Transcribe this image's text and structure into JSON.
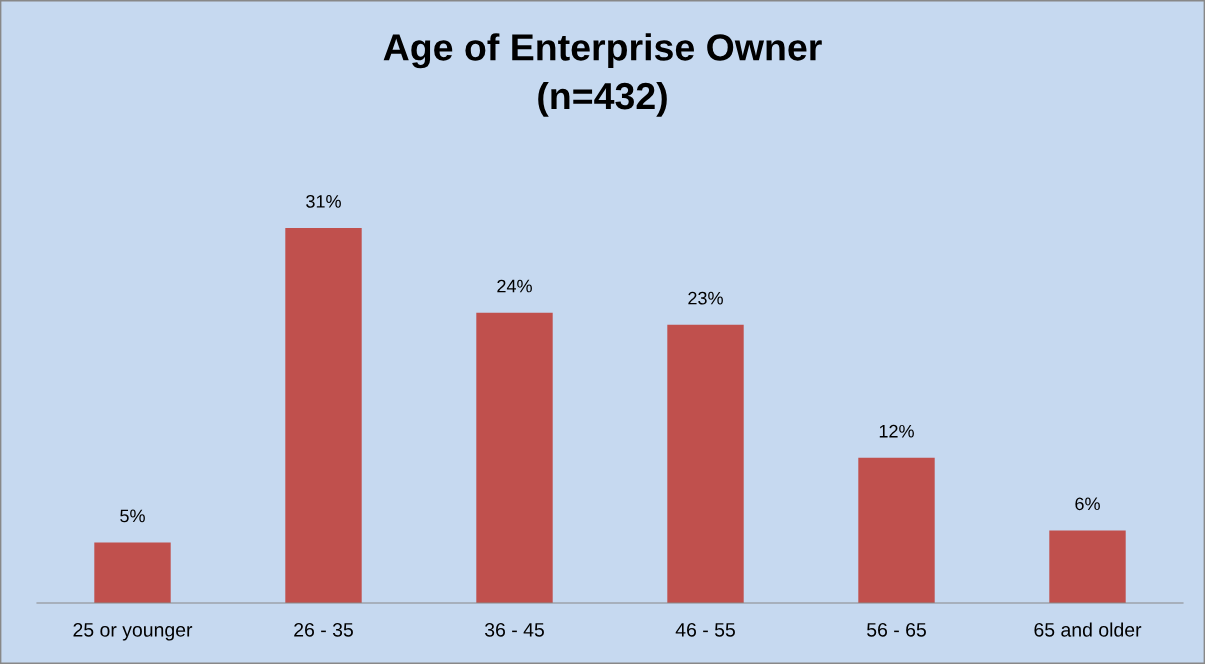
{
  "chart_data": {
    "type": "bar",
    "title": "Age of Enterprise Owner\n(n=432)",
    "categories": [
      "25 or younger",
      "26 - 35",
      "36 - 45",
      "46 - 55",
      "56 - 65",
      "65 and older"
    ],
    "values": [
      5,
      31,
      24,
      23,
      12,
      6
    ],
    "value_labels": [
      "5%",
      "31%",
      "24%",
      "23%",
      "12%",
      "6%"
    ],
    "color": "#c0504d",
    "grid": false,
    "legend": false
  }
}
